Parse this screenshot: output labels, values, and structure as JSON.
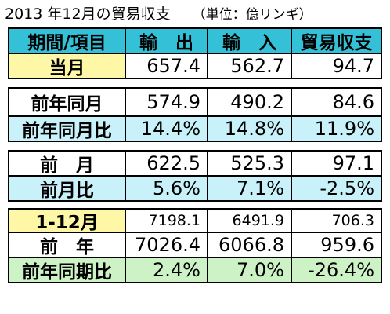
{
  "title": "2013 年12月の貿易収支",
  "unit": "（単位：億リンギ）",
  "header": [
    "期間/項目",
    "輸　出",
    "輸　入",
    "貿易収支"
  ],
  "rows": [
    {
      "label": "当月",
      "export": "657.4",
      "import": "562.7",
      "balance": "94.7"
    },
    {
      "label": "前年同月",
      "export": "574.9",
      "import": "490.2",
      "balance": "84.6"
    },
    {
      "label": "前年同月比",
      "export": "14.4%",
      "import": "14.8%",
      "balance": "11.9%"
    },
    {
      "label": "前　月",
      "export": "622.5",
      "import": "525.3",
      "balance": "97.1"
    },
    {
      "label": "前月比",
      "export": "5.6%",
      "import": "7.1%",
      "balance": "-2.5%"
    },
    {
      "label": "1-12月",
      "export": "7198.1",
      "import": "6491.9",
      "balance": "706.3"
    },
    {
      "label": "前　年",
      "export": "7026.4",
      "import": "6066.8",
      "balance": "959.6"
    },
    {
      "label": "前年同期比",
      "export": "2.4%",
      "import": "7.0%",
      "balance": "-26.4%"
    }
  ]
}
